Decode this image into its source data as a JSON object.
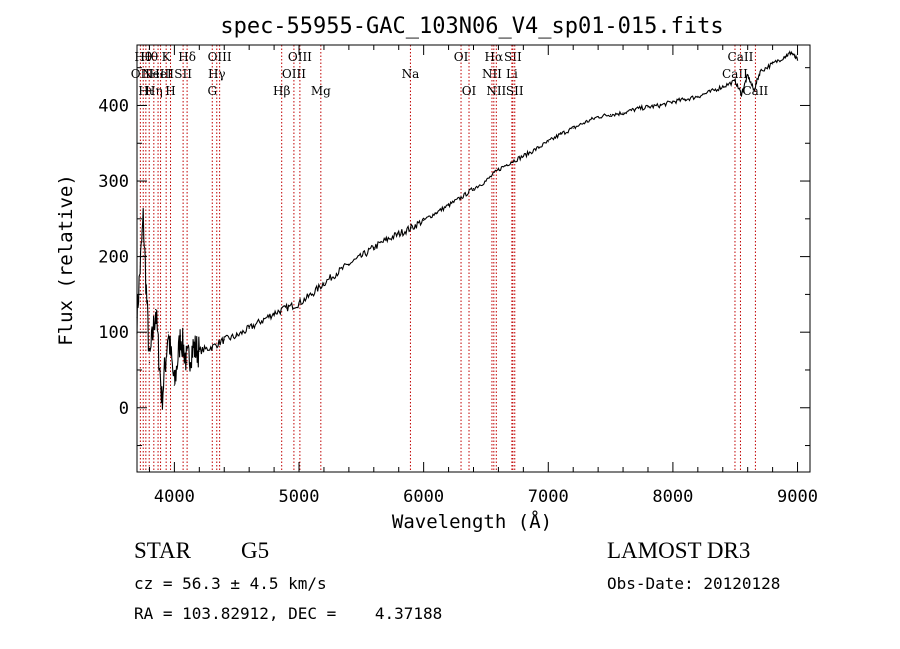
{
  "chart_data": {
    "type": "line",
    "title": "spec-55955-GAC_103N06_V4_sp01-015.fits",
    "xlabel": "Wavelength (Å)",
    "ylabel": "Flux (relative)",
    "xlim": [
      3700,
      9100
    ],
    "ylim": [
      -85,
      480
    ],
    "xticks": [
      4000,
      5000,
      6000,
      7000,
      8000,
      9000
    ],
    "yticks": [
      0,
      100,
      200,
      300,
      400
    ],
    "series": [
      {
        "name": "spectrum",
        "x": [
          3700,
          3750,
          3800,
          3850,
          3900,
          3950,
          4000,
          4050,
          4100,
          4150,
          4200,
          4300,
          4400,
          4500,
          4600,
          4700,
          4800,
          4900,
          5000,
          5100,
          5200,
          5300,
          5400,
          5500,
          5600,
          5700,
          5800,
          5900,
          6000,
          6100,
          6200,
          6300,
          6400,
          6500,
          6600,
          6700,
          6800,
          6900,
          7000,
          7100,
          7200,
          7300,
          7400,
          7500,
          7600,
          7700,
          7800,
          7900,
          8000,
          8100,
          8200,
          8300,
          8400,
          8500,
          8550,
          8600,
          8650,
          8700,
          8800,
          8900,
          8950,
          9000
        ],
        "y": [
          120,
          250,
          60,
          130,
          10,
          100,
          30,
          95,
          60,
          80,
          75,
          80,
          90,
          95,
          105,
          115,
          125,
          132,
          138,
          150,
          165,
          178,
          190,
          200,
          212,
          222,
          230,
          238,
          248,
          258,
          268,
          278,
          290,
          300,
          315,
          325,
          333,
          342,
          352,
          362,
          370,
          378,
          385,
          388,
          390,
          395,
          398,
          400,
          405,
          408,
          412,
          418,
          425,
          432,
          415,
          440,
          420,
          445,
          455,
          465,
          470,
          460
        ]
      }
    ],
    "line_markers": [
      {
        "wavelength": 3727,
        "label": "OII",
        "row": 2
      },
      {
        "wavelength": 3750,
        "label": "Hθ",
        "row": 1
      },
      {
        "wavelength": 3771,
        "label": "Hι",
        "row": 3
      },
      {
        "wavelength": 3798,
        "label": "Hθ",
        "row": 1
      },
      {
        "wavelength": 3835,
        "label": "Hη",
        "row": 3
      },
      {
        "wavelength": 3869,
        "label": "NeIII",
        "row": 2
      },
      {
        "wavelength": 3889,
        "label": "HeI",
        "row": 2
      },
      {
        "wavelength": 3934,
        "label": "K",
        "row": 1
      },
      {
        "wavelength": 3969,
        "label": "H",
        "row": 3
      },
      {
        "wavelength": 4070,
        "label": "SII",
        "row": 2
      },
      {
        "wavelength": 4102,
        "label": "Hδ",
        "row": 1
      },
      {
        "wavelength": 4304,
        "label": "G",
        "row": 3
      },
      {
        "wavelength": 4340,
        "label": "Hγ",
        "row": 2
      },
      {
        "wavelength": 4363,
        "label": "OIII",
        "row": 1
      },
      {
        "wavelength": 4861,
        "label": "Hβ",
        "row": 3
      },
      {
        "wavelength": 4959,
        "label": "OIII",
        "row": 2
      },
      {
        "wavelength": 5007,
        "label": "OIII",
        "row": 1
      },
      {
        "wavelength": 5175,
        "label": "Mg",
        "row": 3
      },
      {
        "wavelength": 5894,
        "label": "Na",
        "row": 2
      },
      {
        "wavelength": 6300,
        "label": "OI",
        "row": 1
      },
      {
        "wavelength": 6364,
        "label": "OI",
        "row": 3
      },
      {
        "wavelength": 6548,
        "label": "NII",
        "row": 2
      },
      {
        "wavelength": 6563,
        "label": "Hα",
        "row": 1
      },
      {
        "wavelength": 6583,
        "label": "NII",
        "row": 3
      },
      {
        "wavelength": 6708,
        "label": "Li",
        "row": 2
      },
      {
        "wavelength": 6716,
        "label": "SII",
        "row": 1
      },
      {
        "wavelength": 6731,
        "label": "SII",
        "row": 3
      },
      {
        "wavelength": 8498,
        "label": "CaII",
        "row": 2
      },
      {
        "wavelength": 8542,
        "label": "CaII",
        "row": 1
      },
      {
        "wavelength": 8662,
        "label": "CaII",
        "row": 3
      }
    ]
  },
  "info": {
    "object_class": "STAR",
    "subclass": "G5",
    "survey": "LAMOST DR3",
    "redshift": "cz = 56.3 ± 4.5 km/s",
    "obs_date": "Obs-Date: 20120128",
    "coords": "RA = 103.82912, DEC =    4.37188"
  },
  "colors": {
    "line_marker": "#c00000",
    "spectrum": "#000000",
    "axes": "#000000"
  }
}
